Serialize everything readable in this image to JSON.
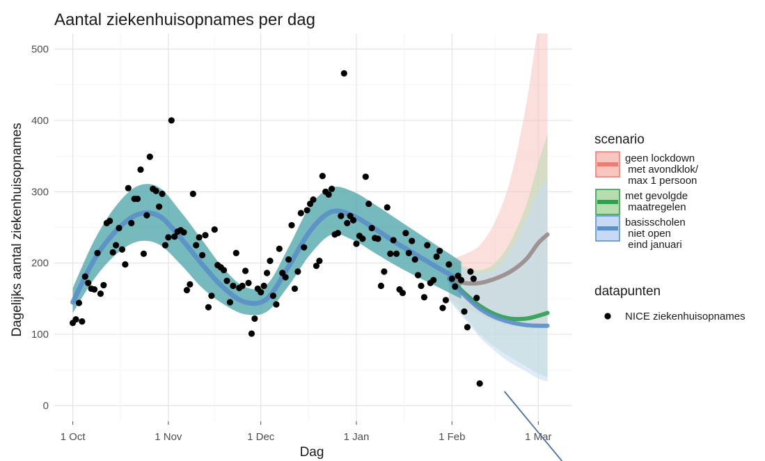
{
  "chart_data": {
    "type": "line",
    "title": "Aantal ziekenhuisopnames per dag",
    "xlabel": "Dag",
    "ylabel": "Dagelijks aantal ziekenhuisopnames",
    "x_ticks": [
      {
        "date": "2020-10-01",
        "label": "1 Oct"
      },
      {
        "date": "2020-11-01",
        "label": "1 Nov"
      },
      {
        "date": "2020-12-01",
        "label": "1 Dec"
      },
      {
        "date": "2021-01-01",
        "label": "1 Jan"
      },
      {
        "date": "2021-02-01",
        "label": "1 Feb"
      },
      {
        "date": "2021-03-01",
        "label": "1 Mar"
      }
    ],
    "xlim": [
      "2020-09-25",
      "2021-03-12"
    ],
    "y_ticks": [
      0,
      100,
      200,
      300,
      400,
      500
    ],
    "ylim": [
      -22,
      522
    ],
    "grid": true,
    "legend_position": "right",
    "scenario_legend_title": "scenario",
    "datapoints_legend_title": "datapunten",
    "fit": {
      "color": "#5b8fc7",
      "band_color": "#4aa3a8",
      "x": [
        "2020-10-01",
        "2020-10-08",
        "2020-10-15",
        "2020-10-22",
        "2020-10-29",
        "2020-11-05",
        "2020-11-12",
        "2020-11-19",
        "2020-11-26",
        "2020-12-03",
        "2020-12-10",
        "2020-12-17",
        "2020-12-24",
        "2020-12-31",
        "2021-01-07",
        "2021-01-14",
        "2021-01-21",
        "2021-01-28",
        "2021-02-04"
      ],
      "y": [
        145,
        205,
        245,
        268,
        266,
        235,
        198,
        165,
        145,
        150,
        195,
        245,
        272,
        266,
        248,
        228,
        210,
        192,
        175
      ],
      "lower": [
        130,
        178,
        212,
        230,
        226,
        198,
        165,
        142,
        128,
        132,
        168,
        212,
        240,
        232,
        214,
        196,
        180,
        165,
        150
      ],
      "upper": [
        165,
        232,
        280,
        308,
        306,
        272,
        232,
        192,
        166,
        170,
        222,
        280,
        306,
        300,
        282,
        262,
        242,
        222,
        202
      ]
    },
    "scenarios": [
      {
        "name": "geen lockdown met avondklok/ max 1 persoon",
        "label_lines": [
          "geen lockdown",
          " met avondklok/",
          " max 1 persoon"
        ],
        "color": "#f07b72",
        "fill": "#f8c5c1",
        "x": [
          "2021-01-31",
          "2021-02-05",
          "2021-02-10",
          "2021-02-15",
          "2021-02-20",
          "2021-02-25",
          "2021-03-01",
          "2021-03-04"
        ],
        "y": [
          178,
          172,
          172,
          178,
          188,
          205,
          228,
          240
        ],
        "lower": [
          150,
          138,
          128,
          118,
          112,
          110,
          110,
          110
        ],
        "upper": [
          205,
          212,
          225,
          258,
          318,
          420,
          530,
          560
        ]
      },
      {
        "name": "met gevolgde maatregelen",
        "label_lines": [
          "met gevolgde",
          " maatregelen"
        ],
        "color": "#2e9e4f",
        "fill": "#b6ddb0",
        "x": [
          "2021-01-31",
          "2021-02-05",
          "2021-02-10",
          "2021-02-15",
          "2021-02-20",
          "2021-02-25",
          "2021-03-01",
          "2021-03-04"
        ],
        "y": [
          178,
          158,
          140,
          128,
          122,
          122,
          126,
          130
        ],
        "lower": [
          150,
          125,
          100,
          82,
          68,
          55,
          45,
          40
        ],
        "upper": [
          205,
          195,
          190,
          200,
          230,
          280,
          340,
          380
        ]
      },
      {
        "name": "basisscholen niet open eind januari",
        "label_lines": [
          "basisscholen",
          " niet open",
          " eind januari"
        ],
        "color": "#5b8fc7",
        "fill": "#c6daf5",
        "x": [
          "2021-01-31",
          "2021-02-05",
          "2021-02-10",
          "2021-02-15",
          "2021-02-20",
          "2021-02-25",
          "2021-03-01",
          "2021-03-04"
        ],
        "y": [
          178,
          155,
          136,
          124,
          117,
          113,
          112,
          112
        ],
        "lower": [
          148,
          122,
          96,
          76,
          60,
          48,
          38,
          34
        ],
        "upper": [
          205,
          192,
          186,
          192,
          218,
          262,
          300,
          318
        ]
      }
    ],
    "datapoints": {
      "name": "NICE ziekenhuisopnames",
      "color": "#000000",
      "points": [
        [
          "2020-10-01",
          116
        ],
        [
          "2020-10-02",
          121
        ],
        [
          "2020-10-03",
          144
        ],
        [
          "2020-10-04",
          118
        ],
        [
          "2020-10-05",
          181
        ],
        [
          "2020-10-06",
          172
        ],
        [
          "2020-10-07",
          164
        ],
        [
          "2020-10-08",
          163
        ],
        [
          "2020-10-09",
          214
        ],
        [
          "2020-10-10",
          157
        ],
        [
          "2020-10-11",
          169
        ],
        [
          "2020-10-12",
          256
        ],
        [
          "2020-10-13",
          259
        ],
        [
          "2020-10-14",
          215
        ],
        [
          "2020-10-15",
          225
        ],
        [
          "2020-10-16",
          249
        ],
        [
          "2020-10-17",
          219
        ],
        [
          "2020-10-18",
          198
        ],
        [
          "2020-10-19",
          305
        ],
        [
          "2020-10-20",
          256
        ],
        [
          "2020-10-21",
          290
        ],
        [
          "2020-10-22",
          290
        ],
        [
          "2020-10-23",
          331
        ],
        [
          "2020-10-24",
          213
        ],
        [
          "2020-10-25",
          267
        ],
        [
          "2020-10-26",
          349
        ],
        [
          "2020-10-27",
          304
        ],
        [
          "2020-10-28",
          301
        ],
        [
          "2020-10-29",
          279
        ],
        [
          "2020-10-30",
          297
        ],
        [
          "2020-10-31",
          225
        ],
        [
          "2020-11-01",
          236
        ],
        [
          "2020-11-02",
          400
        ],
        [
          "2020-11-03",
          237
        ],
        [
          "2020-11-04",
          244
        ],
        [
          "2020-11-05",
          246
        ],
        [
          "2020-11-06",
          243
        ],
        [
          "2020-11-07",
          162
        ],
        [
          "2020-11-08",
          170
        ],
        [
          "2020-11-09",
          297
        ],
        [
          "2020-11-10",
          225
        ],
        [
          "2020-11-11",
          236
        ],
        [
          "2020-11-12",
          211
        ],
        [
          "2020-11-13",
          239
        ],
        [
          "2020-11-14",
          138
        ],
        [
          "2020-11-15",
          154
        ],
        [
          "2020-11-16",
          247
        ],
        [
          "2020-11-17",
          197
        ],
        [
          "2020-11-18",
          194
        ],
        [
          "2020-11-19",
          190
        ],
        [
          "2020-11-20",
          175
        ],
        [
          "2020-11-21",
          145
        ],
        [
          "2020-11-22",
          168
        ],
        [
          "2020-11-23",
          214
        ],
        [
          "2020-11-24",
          165
        ],
        [
          "2020-11-25",
          168
        ],
        [
          "2020-11-26",
          189
        ],
        [
          "2020-11-27",
          172
        ],
        [
          "2020-11-28",
          101
        ],
        [
          "2020-11-29",
          122
        ],
        [
          "2020-11-30",
          164
        ],
        [
          "2020-12-01",
          159
        ],
        [
          "2020-12-02",
          168
        ],
        [
          "2020-12-03",
          186
        ],
        [
          "2020-12-04",
          203
        ],
        [
          "2020-12-05",
          154
        ],
        [
          "2020-12-06",
          142
        ],
        [
          "2020-12-07",
          220
        ],
        [
          "2020-12-08",
          186
        ],
        [
          "2020-12-09",
          180
        ],
        [
          "2020-12-10",
          205
        ],
        [
          "2020-12-11",
          253
        ],
        [
          "2020-12-12",
          164
        ],
        [
          "2020-12-13",
          188
        ],
        [
          "2020-12-14",
          270
        ],
        [
          "2020-12-15",
          222
        ],
        [
          "2020-12-16",
          274
        ],
        [
          "2020-12-17",
          283
        ],
        [
          "2020-12-18",
          289
        ],
        [
          "2020-12-19",
          196
        ],
        [
          "2020-12-20",
          203
        ],
        [
          "2020-12-21",
          322
        ],
        [
          "2020-12-22",
          300
        ],
        [
          "2020-12-23",
          296
        ],
        [
          "2020-12-24",
          304
        ],
        [
          "2020-12-25",
          240
        ],
        [
          "2020-12-26",
          242
        ],
        [
          "2020-12-27",
          266
        ],
        [
          "2020-12-28",
          466
        ],
        [
          "2020-12-29",
          256
        ],
        [
          "2020-12-30",
          266
        ],
        [
          "2020-12-31",
          260
        ],
        [
          "2021-01-01",
          227
        ],
        [
          "2021-01-02",
          238
        ],
        [
          "2021-01-03",
          234
        ],
        [
          "2021-01-04",
          321
        ],
        [
          "2021-01-05",
          283
        ],
        [
          "2021-01-06",
          249
        ],
        [
          "2021-01-07",
          235
        ],
        [
          "2021-01-08",
          234
        ],
        [
          "2021-01-09",
          168
        ],
        [
          "2021-01-10",
          188
        ],
        [
          "2021-01-11",
          278
        ],
        [
          "2021-01-12",
          213
        ],
        [
          "2021-01-13",
          232
        ],
        [
          "2021-01-14",
          213
        ],
        [
          "2021-01-15",
          163
        ],
        [
          "2021-01-16",
          158
        ],
        [
          "2021-01-17",
          242
        ],
        [
          "2021-01-18",
          214
        ],
        [
          "2021-01-19",
          231
        ],
        [
          "2021-01-20",
          205
        ],
        [
          "2021-01-21",
          183
        ],
        [
          "2021-01-22",
          168
        ],
        [
          "2021-01-23",
          152
        ],
        [
          "2021-01-24",
          225
        ],
        [
          "2021-01-25",
          172
        ],
        [
          "2021-01-26",
          176
        ],
        [
          "2021-01-27",
          209
        ],
        [
          "2021-01-28",
          217
        ],
        [
          "2021-01-29",
          137
        ],
        [
          "2021-01-30",
          148
        ],
        [
          "2021-01-31",
          198
        ],
        [
          "2021-02-01",
          178
        ],
        [
          "2021-02-02",
          167
        ],
        [
          "2021-02-03",
          182
        ],
        [
          "2021-02-04",
          176
        ],
        [
          "2021-02-05",
          132
        ],
        [
          "2021-02-06",
          110
        ],
        [
          "2021-02-07",
          188
        ],
        [
          "2021-02-08",
          178
        ],
        [
          "2021-02-09",
          151
        ],
        [
          "2021-02-10",
          31
        ]
      ]
    },
    "annotation_line": {
      "color": "#4a6fa0",
      "from": [
        "2021-02-18",
        20
      ],
      "to": [
        "2021-03-12",
        -95
      ]
    }
  }
}
